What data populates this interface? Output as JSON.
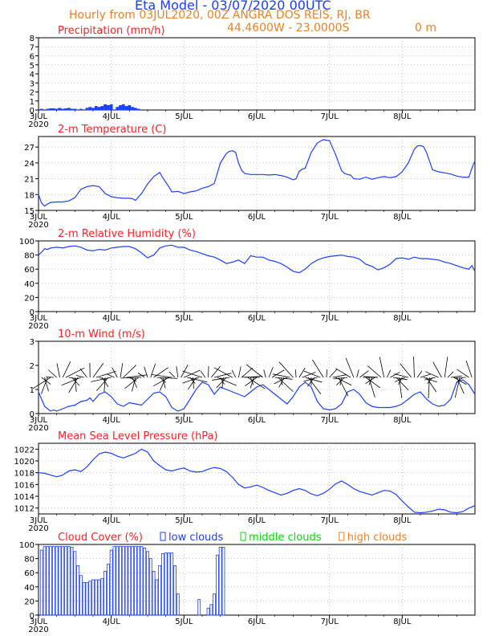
{
  "header": {
    "title": "Eta Model - 03/07/2020 00UTC",
    "subtitle": "Hourly from 03JUL2020, 00Z  ANGRA DOS REIS, RJ, BR",
    "location": "44.4600W - 23.0000S",
    "elevation": "0   m",
    "colors": {
      "title": "#1a3cff",
      "subtitle": "#f08020",
      "panel_title": "#ff2020",
      "series": "#1a40ff"
    }
  },
  "chart_data": [
    {
      "type": "bar",
      "title": "Precipitation (mm/h)",
      "ylim": [
        0,
        8
      ],
      "yticks": [
        0,
        1,
        2,
        3,
        4,
        5,
        6,
        7,
        8
      ],
      "xticks": [
        "3JUL\n2020",
        "4JUL",
        "5JUL",
        "6JUL",
        "7JUL",
        "8JUL"
      ],
      "x": [
        1,
        3,
        4,
        5,
        6,
        7,
        8,
        9,
        10,
        11,
        12,
        14,
        16,
        17,
        18,
        19,
        20,
        21,
        22,
        23,
        24,
        26,
        27,
        28,
        29,
        30,
        31,
        32,
        33
      ],
      "values": [
        0.1,
        0.1,
        0.15,
        0.15,
        0.1,
        0.2,
        0.1,
        0.15,
        0.2,
        0.1,
        0.1,
        0.1,
        0.2,
        0.3,
        0.2,
        0.4,
        0.3,
        0.4,
        0.6,
        0.5,
        0.6,
        0.3,
        0.5,
        0.6,
        0.4,
        0.5,
        0.3,
        0.2,
        0.1
      ]
    },
    {
      "type": "line",
      "title": "2-m Temperature (C)",
      "ylim": [
        15,
        29
      ],
      "yticks": [
        15,
        18,
        21,
        24,
        27
      ],
      "xticks": [
        "3JUL\n2020",
        "4JUL",
        "5JUL",
        "6JUL",
        "7JUL",
        "8JUL"
      ],
      "x": [
        0,
        1,
        2,
        3,
        4,
        6,
        8,
        9,
        10,
        12,
        14,
        16,
        18,
        20,
        22,
        24,
        26,
        28,
        30,
        31,
        32,
        34,
        36,
        38,
        40,
        41,
        43,
        44,
        46,
        48,
        50,
        52,
        54,
        56,
        58,
        60,
        62,
        63,
        64,
        65,
        66,
        67,
        68,
        70,
        72,
        74,
        76,
        78,
        80,
        82,
        84,
        85,
        86,
        87,
        88,
        90,
        92,
        94,
        96,
        98,
        100,
        101,
        102,
        103,
        104,
        106,
        108,
        110,
        112,
        114,
        116,
        118,
        120,
        122,
        124,
        125,
        126,
        127,
        128,
        130,
        132,
        134,
        136,
        138,
        140,
        142,
        143,
        144
      ],
      "values": [
        18,
        16.4,
        15.8,
        16.2,
        16.5,
        16.6,
        16.6,
        16.7,
        16.8,
        17.4,
        19.0,
        19.5,
        19.7,
        19.5,
        18.2,
        17.6,
        17.4,
        17.3,
        17.3,
        17.2,
        16.9,
        18.2,
        20.0,
        21.4,
        22.2,
        21.2,
        19.5,
        18.5,
        18.6,
        18.2,
        18.5,
        18.7,
        19.2,
        19.5,
        20.1,
        24.0,
        25.8,
        26.2,
        26.3,
        26.0,
        24.0,
        22.6,
        22.0,
        21.8,
        21.8,
        21.8,
        21.7,
        21.8,
        21.6,
        21.3,
        20.8,
        21.0,
        22.4,
        22.8,
        23.0,
        26.0,
        27.8,
        28.4,
        28.2,
        25.6,
        22.5,
        22.0,
        21.8,
        21.7,
        21.0,
        20.9,
        21.3,
        20.9,
        21.2,
        21.4,
        21.2,
        21.4,
        22.3,
        24.0,
        26.6,
        27.2,
        27.3,
        27.1,
        26.0,
        22.7,
        22.3,
        22.1,
        21.9,
        21.5,
        21.3,
        21.3,
        23.0,
        24.4
      ]
    },
    {
      "type": "line",
      "title": "2-m Relative Humidity (%)",
      "ylim": [
        0,
        100
      ],
      "yticks": [
        0,
        20,
        40,
        60,
        80,
        100
      ],
      "xticks": [
        "3JUL\n2020",
        "4JUL",
        "5JUL",
        "6JUL",
        "7JUL",
        "8JUL"
      ],
      "x": [
        0,
        1,
        2,
        3,
        4,
        6,
        8,
        10,
        12,
        14,
        16,
        18,
        20,
        22,
        24,
        26,
        28,
        30,
        32,
        34,
        36,
        38,
        40,
        42,
        44,
        46,
        48,
        50,
        52,
        54,
        56,
        58,
        60,
        62,
        64,
        66,
        68,
        70,
        72,
        74,
        76,
        78,
        80,
        82,
        84,
        86,
        88,
        90,
        92,
        94,
        96,
        98,
        100,
        102,
        104,
        106,
        108,
        110,
        112,
        114,
        116,
        118,
        120,
        122,
        124,
        126,
        128,
        130,
        132,
        134,
        136,
        138,
        140,
        142,
        143,
        144
      ],
      "values": [
        80,
        84,
        89,
        88,
        90,
        91,
        90,
        92,
        93,
        91,
        87,
        86,
        88,
        87,
        90,
        91,
        92,
        92,
        89,
        83,
        76,
        80,
        90,
        93,
        94,
        91,
        91,
        87,
        85,
        82,
        79,
        77,
        73,
        68,
        70,
        73,
        68,
        79,
        77,
        77,
        73,
        71,
        68,
        63,
        57,
        55,
        60,
        68,
        73,
        76,
        78,
        79,
        80,
        78,
        77,
        74,
        67,
        64,
        59,
        62,
        67,
        75,
        76,
        74,
        77,
        75,
        75,
        74,
        73,
        70,
        68,
        65,
        62,
        60,
        65,
        57
      ]
    },
    {
      "type": "line",
      "title": "10-m Wind (m/s)",
      "ylim": [
        0,
        3
      ],
      "yticks": [
        0,
        1,
        2,
        3
      ],
      "xticks": [
        "3JUL\n2020",
        "4JUL",
        "5JUL",
        "6JUL",
        "7JUL",
        "8JUL"
      ],
      "x": [
        0,
        1,
        2,
        3,
        4,
        5,
        6,
        7,
        8,
        10,
        12,
        14,
        16,
        17,
        18,
        20,
        22,
        24,
        26,
        28,
        30,
        32,
        34,
        36,
        38,
        40,
        42,
        44,
        46,
        48,
        50,
        52,
        54,
        56,
        58,
        60,
        62,
        64,
        66,
        68,
        70,
        72,
        74,
        76,
        78,
        80,
        82,
        84,
        86,
        88,
        90,
        92,
        94,
        96,
        98,
        100,
        102,
        104,
        106,
        108,
        110,
        112,
        114,
        116,
        118,
        120,
        122,
        124,
        126,
        128,
        130,
        132,
        134,
        136,
        138,
        140,
        142,
        144
      ],
      "values": [
        0.9,
        0.6,
        0.3,
        0.2,
        0.1,
        0.15,
        0.1,
        0.15,
        0.2,
        0.3,
        0.35,
        0.5,
        0.55,
        0.65,
        0.5,
        0.8,
        0.9,
        0.7,
        0.4,
        0.3,
        0.45,
        0.4,
        0.35,
        0.6,
        0.85,
        0.9,
        0.7,
        0.25,
        0.1,
        0.2,
        0.6,
        1.0,
        1.3,
        1.2,
        0.8,
        1.1,
        1.0,
        0.9,
        0.8,
        0.7,
        0.9,
        1.1,
        1.2,
        1.0,
        0.8,
        0.6,
        0.4,
        0.7,
        1.1,
        1.3,
        1.1,
        0.5,
        0.2,
        0.15,
        0.2,
        0.4,
        0.9,
        1.0,
        0.8,
        0.45,
        0.3,
        0.25,
        0.25,
        0.25,
        0.3,
        0.4,
        0.6,
        0.8,
        0.9,
        0.6,
        0.4,
        0.3,
        0.35,
        0.6,
        1.3,
        1.4,
        1.2,
        0.8
      ]
    },
    {
      "type": "line",
      "title": "Mean Sea Level Pressure (hPa)",
      "ylim": [
        1011,
        1023
      ],
      "yticks": [
        1012,
        1014,
        1016,
        1018,
        1020,
        1022
      ],
      "xticks": [
        "3JUL\n2020",
        "4JUL",
        "5JUL",
        "6JUL",
        "7JUL",
        "8JUL"
      ],
      "x": [
        0,
        2,
        4,
        6,
        8,
        10,
        12,
        14,
        16,
        18,
        20,
        22,
        24,
        26,
        28,
        30,
        32,
        34,
        36,
        38,
        40,
        42,
        44,
        46,
        48,
        50,
        52,
        54,
        56,
        58,
        60,
        62,
        64,
        66,
        68,
        70,
        72,
        74,
        76,
        78,
        80,
        82,
        84,
        86,
        88,
        90,
        92,
        94,
        96,
        98,
        100,
        102,
        104,
        106,
        108,
        110,
        112,
        114,
        116,
        118,
        120,
        122,
        124,
        126,
        128,
        130,
        132,
        134,
        136,
        138,
        140,
        142,
        144
      ],
      "values": [
        1018,
        1017.9,
        1017.6,
        1017.3,
        1017.6,
        1018.3,
        1018.5,
        1018.2,
        1019.0,
        1020.2,
        1021.2,
        1021.5,
        1021.3,
        1020.8,
        1020.5,
        1020.9,
        1021.3,
        1022.0,
        1021.5,
        1020.0,
        1019.2,
        1018.5,
        1018.3,
        1018.6,
        1018.8,
        1018.3,
        1018.1,
        1018.2,
        1018.6,
        1018.9,
        1018.7,
        1018.2,
        1017.2,
        1016.0,
        1015.4,
        1015.6,
        1015.9,
        1015.5,
        1015.0,
        1014.6,
        1014.2,
        1014.5,
        1015.0,
        1015.3,
        1015.0,
        1014.4,
        1014.1,
        1014.5,
        1015.2,
        1016.1,
        1016.6,
        1016.0,
        1015.3,
        1014.8,
        1014.5,
        1014.2,
        1014.6,
        1015.0,
        1014.9,
        1014.3,
        1013.2,
        1012.2,
        1011.3,
        1011.2,
        1011.3,
        1011.5,
        1011.8,
        1011.7,
        1011.3,
        1011.2,
        1011.4,
        1012.0,
        1012.4
      ]
    },
    {
      "type": "bar",
      "title": "Cloud Cover (%)",
      "legend": [
        "low clouds",
        "middle clouds",
        "high clouds"
      ],
      "legend_colors": [
        "#1a40ff",
        "#00dd00",
        "#f08020"
      ],
      "ylim": [
        0,
        100
      ],
      "yticks": [
        0,
        20,
        40,
        60,
        80,
        100
      ],
      "xticks": [
        "3JUL\n2020",
        "4JUL",
        "5JUL",
        "6JUL",
        "7JUL",
        "8JUL"
      ],
      "x": [
        1,
        2,
        3,
        4,
        5,
        6,
        7,
        8,
        9,
        10,
        11,
        12,
        13,
        14,
        15,
        16,
        17,
        18,
        19,
        20,
        21,
        22,
        23,
        24,
        25,
        26,
        27,
        28,
        29,
        30,
        31,
        32,
        33,
        34,
        35,
        36,
        37,
        38,
        39,
        40,
        41,
        42,
        43,
        44,
        45,
        46,
        47,
        48,
        49,
        53,
        55,
        56,
        57,
        58,
        59,
        60,
        61
      ],
      "values": [
        92,
        97,
        97,
        97,
        97,
        97,
        97,
        97,
        97,
        97,
        96,
        90,
        70,
        56,
        46,
        46,
        48,
        50,
        50,
        50,
        52,
        62,
        72,
        92,
        97,
        97,
        97,
        97,
        97,
        97,
        97,
        97,
        97,
        97,
        95,
        90,
        80,
        62,
        50,
        70,
        87,
        88,
        88,
        88,
        70,
        30,
        0,
        0,
        0,
        22,
        0,
        10,
        15,
        30,
        85,
        96,
        96
      ]
    }
  ]
}
